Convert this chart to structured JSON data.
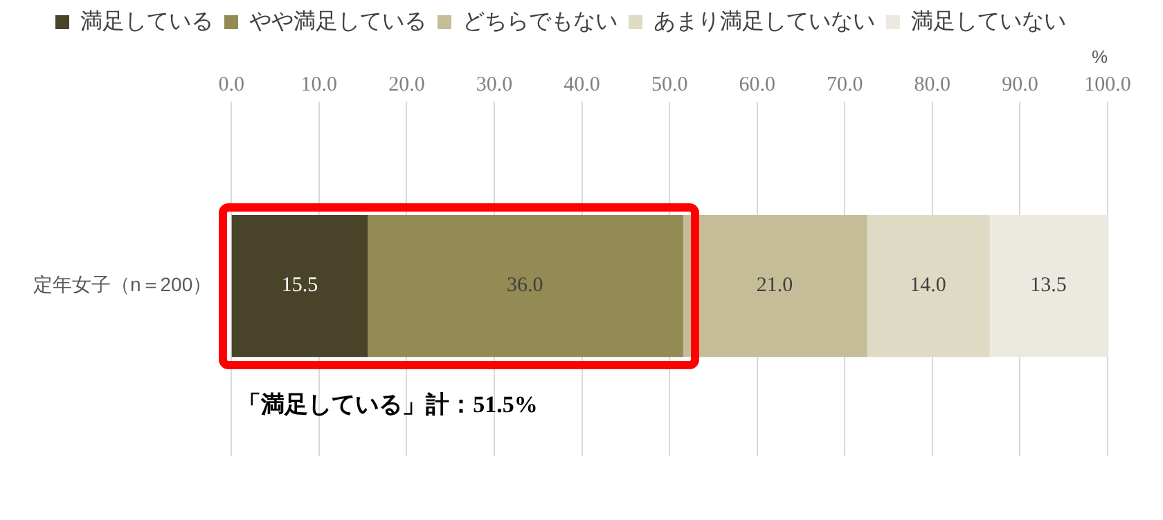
{
  "chart_data": {
    "type": "bar",
    "orientation": "horizontal",
    "stacked": true,
    "categories": [
      "定年女子（n＝200）"
    ],
    "series": [
      {
        "name": "満足している",
        "color": "#49432a",
        "values": [
          15.5
        ]
      },
      {
        "name": "やや満足している",
        "color": "#938a54",
        "values": [
          36.0
        ]
      },
      {
        "name": "どちらでもない",
        "color": "#c4bd98",
        "values": [
          21.0
        ]
      },
      {
        "name": "あまり満足していない",
        "color": "#dedac4",
        "values": [
          14.0
        ]
      },
      {
        "name": "満足していない",
        "color": "#eceae0",
        "values": [
          13.5
        ]
      }
    ],
    "xlabel": "%",
    "xlim": [
      0,
      100
    ],
    "xticks": [
      {
        "value": 0,
        "label": "0.0"
      },
      {
        "value": 10,
        "label": "10.0"
      },
      {
        "value": 20,
        "label": "20.0"
      },
      {
        "value": 30,
        "label": "30.0"
      },
      {
        "value": 40,
        "label": "40.0"
      },
      {
        "value": 50,
        "label": "50.0"
      },
      {
        "value": 60,
        "label": "60.0"
      },
      {
        "value": 70,
        "label": "70.0"
      },
      {
        "value": 80,
        "label": "80.0"
      },
      {
        "value": 90,
        "label": "90.0"
      },
      {
        "value": 100,
        "label": "100.0"
      }
    ],
    "value_labels": [
      [
        "15.5"
      ],
      [
        "36.0"
      ],
      [
        "21.0"
      ],
      [
        "14.0"
      ],
      [
        "13.5"
      ]
    ],
    "annotations": [
      "「満足している」計：51.5%"
    ],
    "grid": "x",
    "legend": "top"
  }
}
